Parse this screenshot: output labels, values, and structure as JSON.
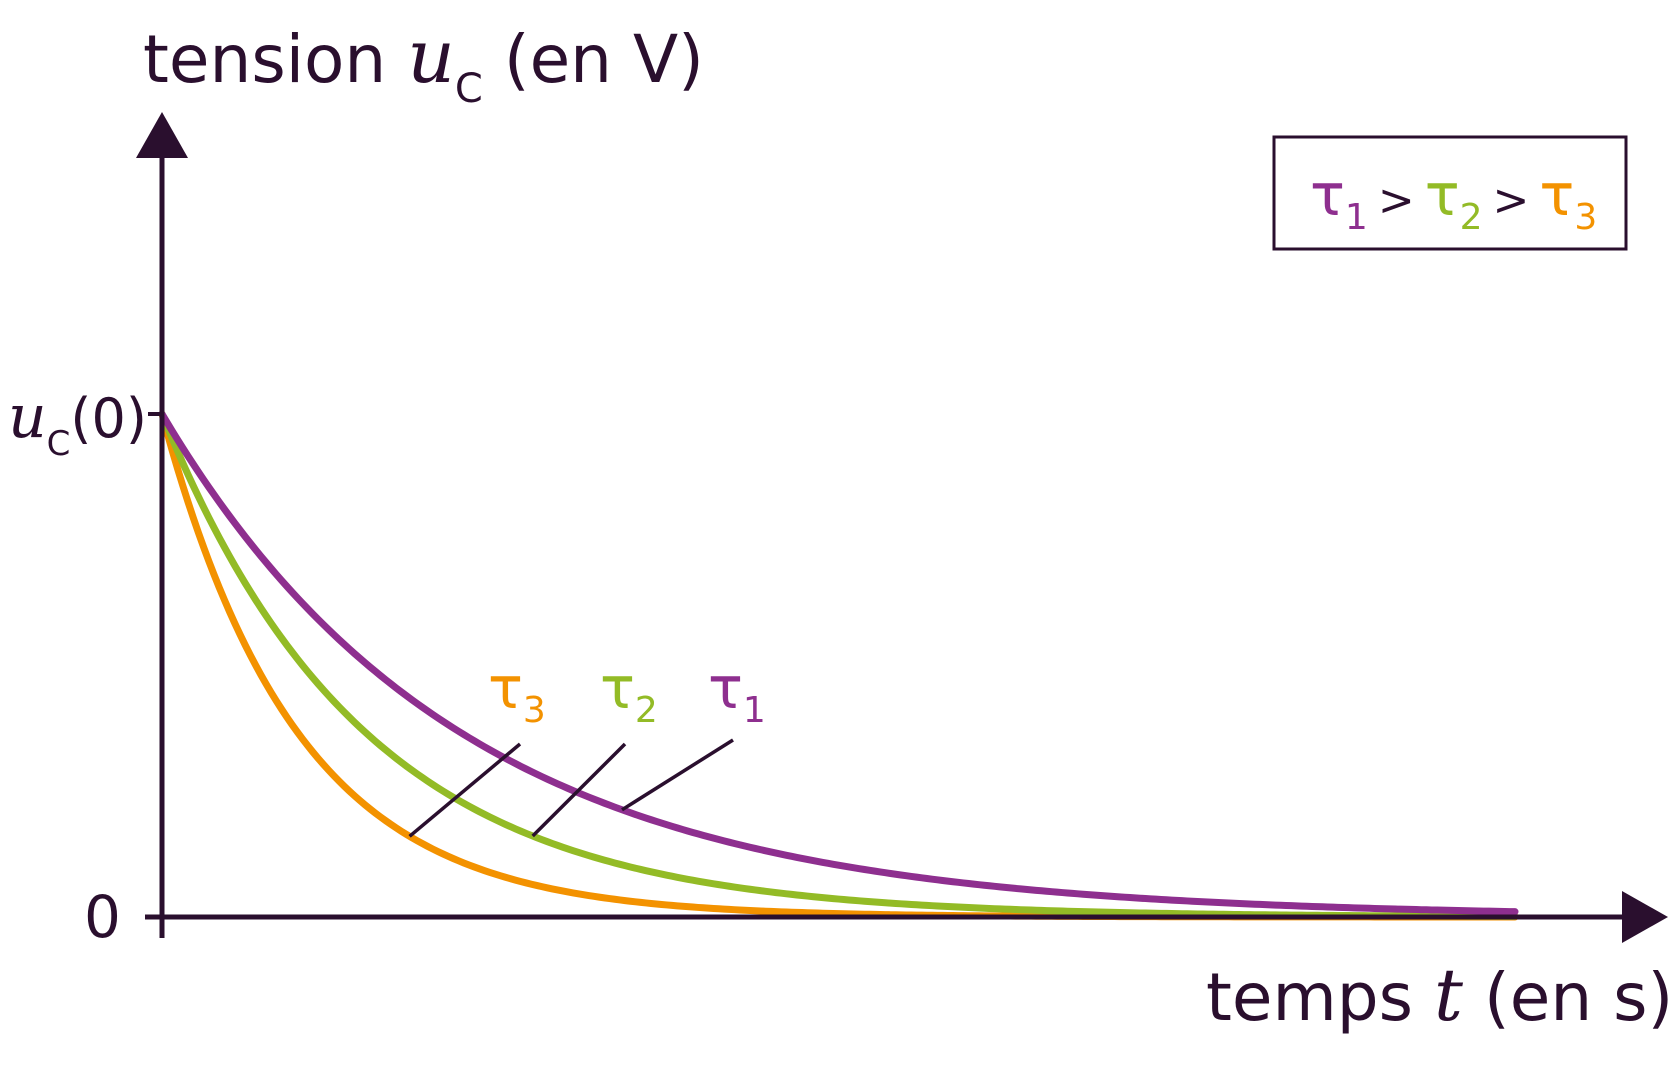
{
  "chart_data": {
    "type": "line",
    "title": "",
    "ylabel": {
      "prefix": "tension ",
      "symbol": "u",
      "subscript": "C",
      "suffix": " (en V)"
    },
    "xlabel": {
      "prefix": "temps ",
      "symbol": "t",
      "suffix": " (en s)"
    },
    "y_ticks": {
      "top": {
        "symbol": "u",
        "subscript": "C",
        "suffix": "(0)"
      },
      "zero": "0"
    },
    "x_range": [
      0,
      10
    ],
    "y_range": [
      0,
      1
    ],
    "grid": false,
    "series": [
      {
        "name": "τ1",
        "symbol": "τ",
        "index": "1",
        "color": "#8e2f8f",
        "tau": 2.2
      },
      {
        "name": "τ2",
        "symbol": "τ",
        "index": "2",
        "color": "#93bb26",
        "tau": 1.5
      },
      {
        "name": "τ3",
        "symbol": "τ",
        "index": "3",
        "color": "#f39200",
        "tau": 1.0
      }
    ],
    "legend": {
      "position": "top-right",
      "relation_sign": ">"
    }
  },
  "colors": {
    "axis": "#2a0f2e",
    "tau1": "#8e2f8f",
    "tau2": "#93bb26",
    "tau3": "#f39200"
  }
}
